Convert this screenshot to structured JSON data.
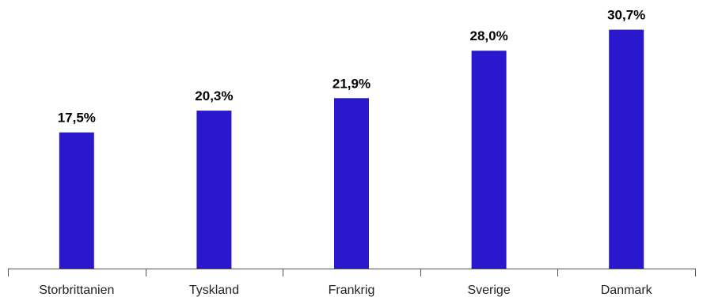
{
  "chart_data": {
    "type": "bar",
    "categories": [
      "Storbrittanien",
      "Tyskland",
      "Frankrig",
      "Sverige",
      "Danmark"
    ],
    "values": [
      17.5,
      20.3,
      21.9,
      28.0,
      30.7
    ],
    "value_labels": [
      "17,5%",
      "20,3%",
      "21,9%",
      "28,0%",
      "30,7%"
    ],
    "title": "",
    "xlabel": "",
    "ylabel": "",
    "ylim": [
      0,
      33.5
    ],
    "grid": false,
    "legend": "none",
    "bar_color": "#2a19cc"
  }
}
